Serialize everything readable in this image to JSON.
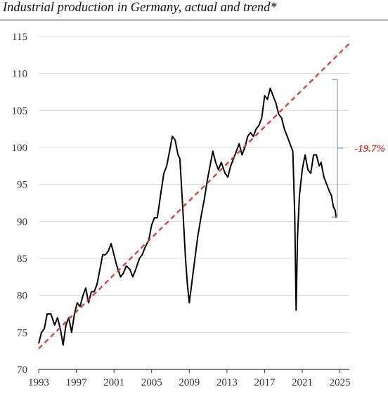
{
  "chart_data": {
    "type": "line",
    "title": "Industrial production in Germany, actual and trend*",
    "xlabel": "",
    "ylabel": "",
    "xlim": [
      1993,
      2026
    ],
    "ylim": [
      70,
      115
    ],
    "x_ticks": [
      1993,
      1997,
      2001,
      2005,
      2009,
      2013,
      2017,
      2021,
      2025
    ],
    "y_ticks": [
      70,
      75,
      80,
      85,
      90,
      95,
      100,
      105,
      110,
      115
    ],
    "grid": "horizontal",
    "legend": "none",
    "annotation": {
      "text": "-19.7%",
      "color": "#d63a2f",
      "bracket_from": 109.2,
      "bracket_to": 90.6,
      "bracket_color": "#7aa0c4"
    },
    "series": [
      {
        "style": "solid",
        "color": "#000000",
        "points": [
          [
            1993.0,
            73.5
          ],
          [
            1993.3,
            75.0
          ],
          [
            1993.6,
            75.5
          ],
          [
            1993.9,
            77.5
          ],
          [
            1994.3,
            77.5
          ],
          [
            1994.7,
            76.0
          ],
          [
            1995.0,
            77.0
          ],
          [
            1995.3,
            75.5
          ],
          [
            1995.6,
            73.3
          ],
          [
            1995.9,
            76.0
          ],
          [
            1996.2,
            77.0
          ],
          [
            1996.5,
            75.0
          ],
          [
            1996.8,
            77.5
          ],
          [
            1997.1,
            79.0
          ],
          [
            1997.4,
            78.5
          ],
          [
            1997.7,
            80.0
          ],
          [
            1998.0,
            81.0
          ],
          [
            1998.3,
            79.0
          ],
          [
            1998.6,
            80.5
          ],
          [
            1998.9,
            80.5
          ],
          [
            1999.2,
            81.5
          ],
          [
            1999.5,
            83.5
          ],
          [
            1999.8,
            85.5
          ],
          [
            2000.1,
            85.5
          ],
          [
            2000.4,
            86.0
          ],
          [
            2000.7,
            87.0
          ],
          [
            2001.0,
            85.5
          ],
          [
            2001.3,
            84.0
          ],
          [
            2001.7,
            82.5
          ],
          [
            2002.0,
            83.0
          ],
          [
            2002.3,
            84.0
          ],
          [
            2002.7,
            83.5
          ],
          [
            2003.0,
            82.5
          ],
          [
            2003.3,
            83.5
          ],
          [
            2003.7,
            85.0
          ],
          [
            2004.0,
            85.5
          ],
          [
            2004.3,
            86.5
          ],
          [
            2004.7,
            87.5
          ],
          [
            2005.0,
            89.5
          ],
          [
            2005.3,
            90.5
          ],
          [
            2005.6,
            90.5
          ],
          [
            2006.0,
            94.0
          ],
          [
            2006.3,
            96.5
          ],
          [
            2006.6,
            97.5
          ],
          [
            2006.9,
            99.5
          ],
          [
            2007.2,
            101.5
          ],
          [
            2007.5,
            101.0
          ],
          [
            2007.8,
            99.0
          ],
          [
            2008.0,
            98.5
          ],
          [
            2008.3,
            92.0
          ],
          [
            2008.6,
            85.0
          ],
          [
            2008.8,
            81.5
          ],
          [
            2009.0,
            79.0
          ],
          [
            2009.3,
            82.0
          ],
          [
            2009.6,
            85.0
          ],
          [
            2009.9,
            88.0
          ],
          [
            2010.3,
            91.0
          ],
          [
            2010.6,
            93.0
          ],
          [
            2010.9,
            95.5
          ],
          [
            2011.2,
            97.5
          ],
          [
            2011.5,
            99.5
          ],
          [
            2011.8,
            98.0
          ],
          [
            2012.1,
            97.0
          ],
          [
            2012.4,
            98.0
          ],
          [
            2012.8,
            96.5
          ],
          [
            2013.1,
            96.0
          ],
          [
            2013.4,
            97.5
          ],
          [
            2013.7,
            98.5
          ],
          [
            2014.0,
            99.5
          ],
          [
            2014.3,
            100.5
          ],
          [
            2014.6,
            99.0
          ],
          [
            2014.9,
            100.0
          ],
          [
            2015.2,
            101.5
          ],
          [
            2015.5,
            102.0
          ],
          [
            2015.8,
            101.5
          ],
          [
            2016.1,
            102.5
          ],
          [
            2016.4,
            103.0
          ],
          [
            2016.7,
            104.0
          ],
          [
            2017.0,
            107.0
          ],
          [
            2017.3,
            106.5
          ],
          [
            2017.6,
            108.0
          ],
          [
            2017.9,
            107.0
          ],
          [
            2018.2,
            106.0
          ],
          [
            2018.5,
            104.5
          ],
          [
            2018.8,
            104.0
          ],
          [
            2019.1,
            102.5
          ],
          [
            2019.4,
            101.5
          ],
          [
            2019.7,
            100.5
          ],
          [
            2020.0,
            99.5
          ],
          [
            2020.2,
            91.0
          ],
          [
            2020.35,
            78.0
          ],
          [
            2020.5,
            88.0
          ],
          [
            2020.7,
            93.5
          ],
          [
            2021.0,
            97.0
          ],
          [
            2021.3,
            99.0
          ],
          [
            2021.6,
            97.0
          ],
          [
            2021.9,
            96.5
          ],
          [
            2022.2,
            99.0
          ],
          [
            2022.5,
            99.0
          ],
          [
            2022.8,
            97.5
          ],
          [
            2023.0,
            98.0
          ],
          [
            2023.3,
            96.0
          ],
          [
            2023.6,
            95.0
          ],
          [
            2023.9,
            94.0
          ],
          [
            2024.1,
            93.5
          ],
          [
            2024.3,
            92.0
          ],
          [
            2024.5,
            91.5
          ],
          [
            2024.6,
            90.5
          ]
        ]
      },
      {
        "style": "dashed",
        "color": "#d63a2f",
        "points": [
          [
            1993.0,
            72.8
          ],
          [
            2026.2,
            114.3
          ]
        ]
      }
    ]
  }
}
